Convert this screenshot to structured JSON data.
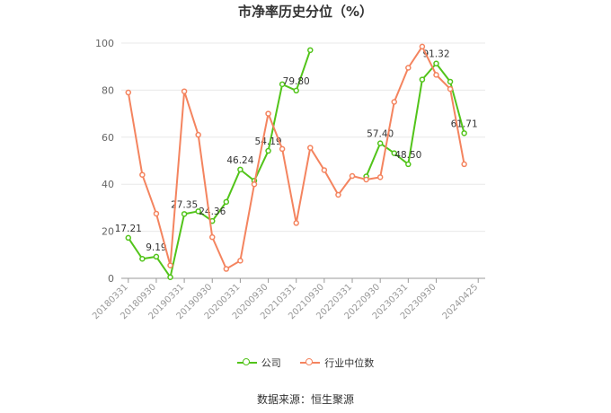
{
  "chart_data": {
    "type": "line",
    "title": "市净率历史分位（%）",
    "x": [
      "20180331",
      "20180630",
      "20180930",
      "20181231",
      "20190331",
      "20190630",
      "20190930",
      "20191231",
      "20200331",
      "20200630",
      "20200930",
      "20201231",
      "20210331",
      "20210630",
      "20210930",
      "20211231",
      "20220331",
      "20220630",
      "20220930",
      "20221231",
      "20230331",
      "20230630",
      "20230930",
      "20231231",
      "20240331",
      "20240425"
    ],
    "x_tick_labels": [
      "20180331",
      "20180930",
      "20190331",
      "20190930",
      "20200331",
      "20200930",
      "20210331",
      "20210930",
      "20220331",
      "20220930",
      "20230331",
      "20230930",
      "20240425"
    ],
    "ylim": [
      0,
      100
    ],
    "y_ticks": [
      0,
      20,
      40,
      60,
      80,
      100
    ],
    "grid": true,
    "legend_position": "bottom",
    "series": [
      {
        "name": "公司",
        "color": "#52c41a",
        "values": [
          17.21,
          8.3,
          9.19,
          0.5,
          27.35,
          28.5,
          24.36,
          32.5,
          46.24,
          41.5,
          54.19,
          82.5,
          79.8,
          97,
          null,
          null,
          null,
          43.3,
          57.4,
          53.2,
          48.5,
          84.5,
          91.32,
          83.6,
          61.71,
          null
        ],
        "labels": [
          {
            "index": 0,
            "text": "17.21"
          },
          {
            "index": 2,
            "text": "9.19"
          },
          {
            "index": 4,
            "text": "27.35"
          },
          {
            "index": 6,
            "text": "24.36"
          },
          {
            "index": 8,
            "text": "46.24"
          },
          {
            "index": 10,
            "text": "54.19"
          },
          {
            "index": 12,
            "text": "79.80"
          },
          {
            "index": 18,
            "text": "57.40"
          },
          {
            "index": 20,
            "text": "48.50"
          },
          {
            "index": 22,
            "text": "91.32"
          },
          {
            "index": 24,
            "text": "61.71"
          }
        ]
      },
      {
        "name": "行业中位数",
        "color": "#f4845f",
        "values": [
          79,
          44,
          27.5,
          5.5,
          79.5,
          61,
          17.5,
          4,
          7.5,
          40,
          70,
          55,
          23.5,
          55.5,
          46,
          35.5,
          43.5,
          42,
          43,
          75,
          89.5,
          98.5,
          86.5,
          80.5,
          48.5,
          null
        ],
        "labels": []
      }
    ]
  },
  "source_text": "数据来源：恒生聚源"
}
